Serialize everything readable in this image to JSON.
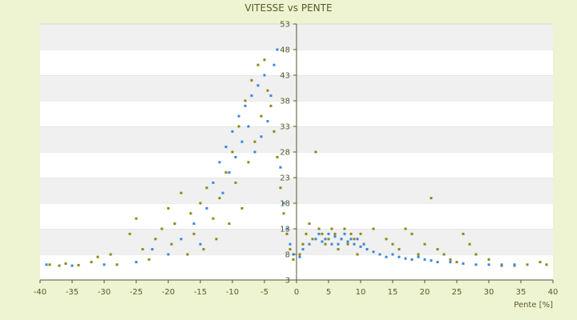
{
  "chart_data": {
    "type": "scatter",
    "title": "VITESSE vs PENTE",
    "xlabel": "Pente [%]",
    "ylabel": "",
    "xlim": [
      -40,
      40
    ],
    "ylim": [
      3,
      53
    ],
    "xticks": [
      -40,
      -35,
      -30,
      -25,
      -20,
      -15,
      -10,
      -5,
      0,
      5,
      10,
      15,
      20,
      25,
      30,
      35,
      40
    ],
    "yticks": [
      3,
      8,
      13,
      18,
      23,
      28,
      33,
      38,
      43,
      48,
      53
    ],
    "grid": "horizontal bands",
    "colors": {
      "background": "#eef3d1",
      "plot_bg": "#ffffff",
      "band": "#f0f0f0",
      "axis": "#555533",
      "series_blue": "#3a86d8",
      "series_olive": "#8a8a10"
    },
    "series": [
      {
        "color": "#8a8a10",
        "points": [
          [
            -38.5,
            6
          ],
          [
            -37,
            5.8
          ],
          [
            -36,
            6.2
          ],
          [
            -34,
            5.9
          ],
          [
            -32,
            6.5
          ],
          [
            -31,
            7.5
          ],
          [
            -29,
            8
          ],
          [
            -28,
            6
          ],
          [
            -26,
            12
          ],
          [
            -25,
            15
          ],
          [
            -24,
            9
          ],
          [
            -23,
            7
          ],
          [
            -22,
            11
          ],
          [
            -21,
            13
          ],
          [
            -20,
            17
          ],
          [
            -19.5,
            10
          ],
          [
            -19,
            14
          ],
          [
            -18,
            20
          ],
          [
            -17,
            8
          ],
          [
            -16.5,
            16
          ],
          [
            -16,
            12
          ],
          [
            -15,
            18
          ],
          [
            -14.5,
            9
          ],
          [
            -14,
            21
          ],
          [
            -13,
            15
          ],
          [
            -12.5,
            11
          ],
          [
            -12,
            19
          ],
          [
            -11,
            24
          ],
          [
            -10.5,
            14
          ],
          [
            -10,
            28
          ],
          [
            -9.5,
            22
          ],
          [
            -9,
            33
          ],
          [
            -8.5,
            17
          ],
          [
            -8,
            38
          ],
          [
            -7.5,
            26
          ],
          [
            -7,
            42
          ],
          [
            -6.5,
            30
          ],
          [
            -6,
            45
          ],
          [
            -5.5,
            35
          ],
          [
            -5,
            46
          ],
          [
            -4.5,
            40
          ],
          [
            -4,
            37
          ],
          [
            -3.5,
            32
          ],
          [
            -3,
            27
          ],
          [
            -2.5,
            21
          ],
          [
            -2,
            16
          ],
          [
            -1.5,
            12
          ],
          [
            -1,
            9
          ],
          [
            -0.5,
            7
          ],
          [
            0.5,
            8
          ],
          [
            1,
            10
          ],
          [
            1.5,
            12
          ],
          [
            2,
            14
          ],
          [
            2.5,
            11
          ],
          [
            3,
            28
          ],
          [
            3.5,
            13
          ],
          [
            4,
            12
          ],
          [
            4.5,
            10
          ],
          [
            5,
            11
          ],
          [
            5.5,
            13
          ],
          [
            6,
            12
          ],
          [
            6.5,
            9
          ],
          [
            7,
            11
          ],
          [
            7.5,
            13
          ],
          [
            8,
            10
          ],
          [
            8.5,
            12
          ],
          [
            9,
            11
          ],
          [
            9.5,
            8
          ],
          [
            10,
            12
          ],
          [
            10.5,
            10
          ],
          [
            11,
            9
          ],
          [
            12,
            13
          ],
          [
            13,
            8
          ],
          [
            14,
            11
          ],
          [
            15,
            10
          ],
          [
            16,
            9
          ],
          [
            17,
            13
          ],
          [
            18,
            12
          ],
          [
            19,
            8
          ],
          [
            20,
            10
          ],
          [
            21,
            19
          ],
          [
            22,
            9
          ],
          [
            23,
            8
          ],
          [
            24,
            7
          ],
          [
            25,
            6.5
          ],
          [
            26,
            12
          ],
          [
            27,
            10
          ],
          [
            28,
            8
          ],
          [
            30,
            7
          ],
          [
            32,
            6
          ],
          [
            34,
            5.8
          ],
          [
            36,
            6
          ],
          [
            38,
            6.5
          ],
          [
            39,
            6
          ]
        ]
      },
      {
        "color": "#3a86d8",
        "points": [
          [
            -39,
            6
          ],
          [
            -35,
            5.8
          ],
          [
            -30,
            6
          ],
          [
            -25,
            6.5
          ],
          [
            -22.5,
            9
          ],
          [
            -20,
            8
          ],
          [
            -18,
            11
          ],
          [
            -16,
            14
          ],
          [
            -15,
            10
          ],
          [
            -14,
            17
          ],
          [
            -13,
            22
          ],
          [
            -12,
            26
          ],
          [
            -11.5,
            20
          ],
          [
            -11,
            29
          ],
          [
            -10.5,
            24
          ],
          [
            -10,
            32
          ],
          [
            -9.5,
            27
          ],
          [
            -9,
            35
          ],
          [
            -8.5,
            30
          ],
          [
            -8,
            37
          ],
          [
            -7.5,
            33
          ],
          [
            -7,
            39
          ],
          [
            -6.5,
            28
          ],
          [
            -6,
            41
          ],
          [
            -5.5,
            31
          ],
          [
            -5,
            43
          ],
          [
            -4.5,
            34
          ],
          [
            -4,
            39
          ],
          [
            -3.5,
            45
          ],
          [
            -3,
            48
          ],
          [
            -2.5,
            25
          ],
          [
            -2,
            18
          ],
          [
            -1.5,
            13
          ],
          [
            -1,
            10
          ],
          [
            -0.5,
            8
          ],
          [
            0.5,
            7.5
          ],
          [
            1,
            9
          ],
          [
            2,
            10
          ],
          [
            3,
            11
          ],
          [
            3.5,
            12
          ],
          [
            4,
            10.5
          ],
          [
            4.5,
            11
          ],
          [
            5,
            12
          ],
          [
            5.5,
            10
          ],
          [
            6,
            11.5
          ],
          [
            6.5,
            10
          ],
          [
            7,
            11
          ],
          [
            7.5,
            12
          ],
          [
            8,
            10.5
          ],
          [
            8.5,
            11
          ],
          [
            9,
            10
          ],
          [
            9.5,
            11
          ],
          [
            10,
            9.5
          ],
          [
            10.5,
            10
          ],
          [
            11,
            9
          ],
          [
            12,
            8.5
          ],
          [
            13,
            8
          ],
          [
            14,
            7.5
          ],
          [
            15,
            8
          ],
          [
            16,
            7.5
          ],
          [
            17,
            7.2
          ],
          [
            18,
            7
          ],
          [
            19,
            7.5
          ],
          [
            20,
            7
          ],
          [
            21,
            6.8
          ],
          [
            22,
            6.5
          ],
          [
            24,
            6.5
          ],
          [
            26,
            6.2
          ],
          [
            28,
            6
          ],
          [
            30,
            6
          ],
          [
            32,
            5.8
          ],
          [
            34,
            6
          ]
        ]
      }
    ]
  }
}
